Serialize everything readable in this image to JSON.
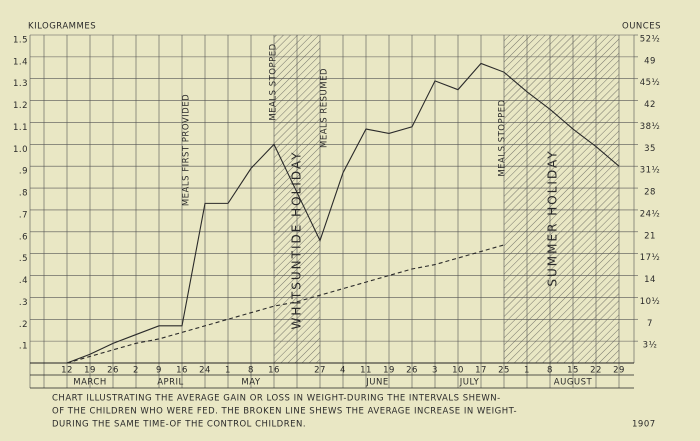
{
  "chart_data": {
    "type": "line",
    "y_axis_label": "KILOGRAMMES",
    "y2_axis_label": "OUNCES",
    "categories": [
      "12",
      "19",
      "26",
      "2",
      "9",
      "16",
      "24",
      "1",
      "8",
      "16",
      null,
      "27",
      "4",
      "11",
      "19",
      "26",
      "3",
      "10",
      "17",
      "25",
      "1",
      "8",
      "15",
      "22",
      "29"
    ],
    "months": [
      "MARCH",
      "APRIL",
      "MAY",
      "JUNE",
      "JULY",
      "AUGUST"
    ],
    "series": [
      {
        "name": "Children who were fed",
        "color": "#2a2a2a",
        "dash": false,
        "values": [
          0,
          0.04,
          0.09,
          0.13,
          0.17,
          0.17,
          0.73,
          0.73,
          0.89,
          1.0,
          0.78,
          0.56,
          0.87,
          1.07,
          1.05,
          1.08,
          1.29,
          1.25,
          1.37,
          1.33,
          1.24,
          1.16,
          1.07,
          0.99,
          0.9
        ]
      },
      {
        "name": "Control children",
        "color": "#2a2a2a",
        "dash": true,
        "values": [
          0,
          0.03,
          0.06,
          0.09,
          0.11,
          0.14,
          0.17,
          0.2,
          0.23,
          0.26,
          0.28,
          0.31,
          0.34,
          0.37,
          0.4,
          0.43,
          0.45,
          0.48,
          0.51,
          0.54,
          null,
          null,
          null,
          null,
          null
        ]
      }
    ],
    "ylim": [
      0,
      1.5
    ],
    "yticks": [
      {
        "value": 0.1,
        "label": ".1"
      },
      {
        "value": 0.2,
        "label": ".2"
      },
      {
        "value": 0.3,
        "label": ".3"
      },
      {
        "value": 0.4,
        "label": ".4"
      },
      {
        "value": 0.5,
        "label": ".5"
      },
      {
        "value": 0.6,
        "label": ".6"
      },
      {
        "value": 0.7,
        "label": ".7"
      },
      {
        "value": 0.8,
        "label": ".8"
      },
      {
        "value": 0.9,
        "label": ".9"
      },
      {
        "value": 1.0,
        "label": "1.0"
      },
      1.1,
      1.2,
      1.3,
      1.4,
      1.5
    ],
    "y2lim": [
      0,
      52.5
    ],
    "y2ticks": [
      {
        "value": 3.5,
        "label": "3½"
      },
      7,
      {
        "value": 10.5,
        "label": "10½"
      },
      14,
      {
        "value": 17.5,
        "label": "17½"
      },
      21,
      {
        "value": 24.5,
        "label": "24½"
      },
      28,
      {
        "value": 31.5,
        "label": "31½"
      },
      35,
      {
        "value": 38.5,
        "label": "38½"
      },
      42,
      {
        "value": 45.5,
        "label": "45½"
      },
      49,
      {
        "value": 52.5,
        "label": "52½"
      }
    ],
    "grid": true,
    "annotations": [
      "MEALS FIRST PROVIDED",
      "MEALS STOPPED",
      "MEALS RESUMED",
      "MEALS STOPPED"
    ],
    "regions": [
      "WHITSUNTIDE HOLIDAY",
      "SUMMER HOLIDAY"
    ],
    "caption": [
      "CHART ILLUSTRATING THE AVERAGE GAIN OR LOSS IN WEIGHT-DURING THE INTERVALS SHEWN-",
      "OF THE CHILDREN WHO WERE FED. THE BROKEN LINE SHEWS THE AVERAGE INCREASE IN WEIGHT-",
      "DURING THE SAME TIME-OF THE CONTROL CHILDREN."
    ],
    "year": "1907"
  }
}
